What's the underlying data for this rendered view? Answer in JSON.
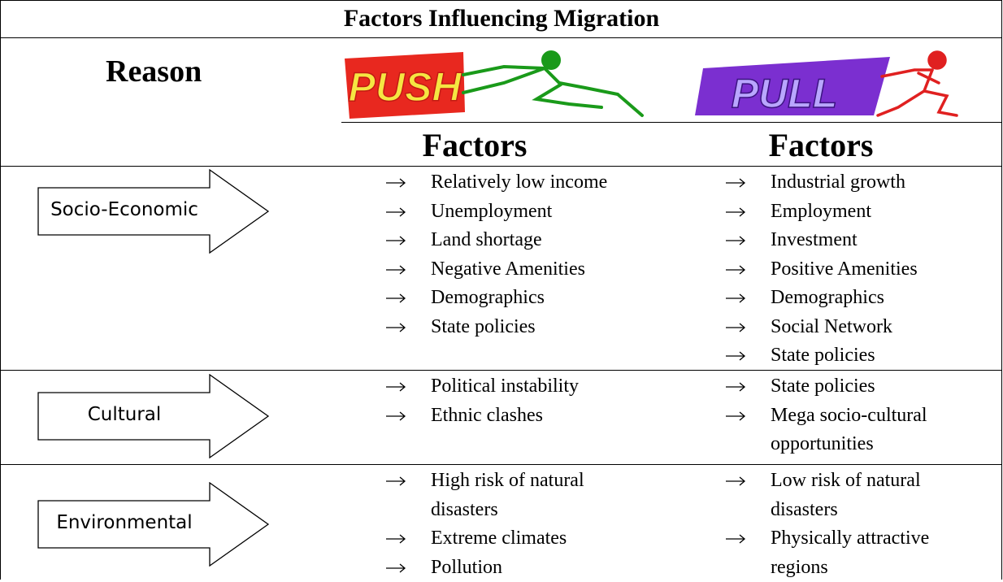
{
  "title": "Factors Influencing Migration",
  "header": {
    "reason": "Reason",
    "push": {
      "label": "PUSH",
      "factors": "Factors"
    },
    "pull": {
      "label": "PULL",
      "factors": "Factors"
    }
  },
  "rows": [
    {
      "reason": "Socio-Economic",
      "push": [
        "Relatively low income",
        "Unemployment",
        "Land shortage",
        "Negative Amenities",
        "Demographics",
        "State policies"
      ],
      "pull": [
        "Industrial growth",
        "Employment",
        "Investment",
        "Positive Amenities",
        "Demographics",
        "Social Network",
        "State policies"
      ]
    },
    {
      "reason": "Cultural",
      "push": [
        "Political instability",
        "Ethnic clashes"
      ],
      "pull": [
        "State policies",
        "Mega socio-cultural opportunities"
      ]
    },
    {
      "reason": "Environmental",
      "push": [
        "High risk of natural disasters",
        "Extreme climates",
        "Pollution"
      ],
      "pull": [
        "Low risk of natural disasters",
        "Physically attractive regions"
      ]
    }
  ]
}
